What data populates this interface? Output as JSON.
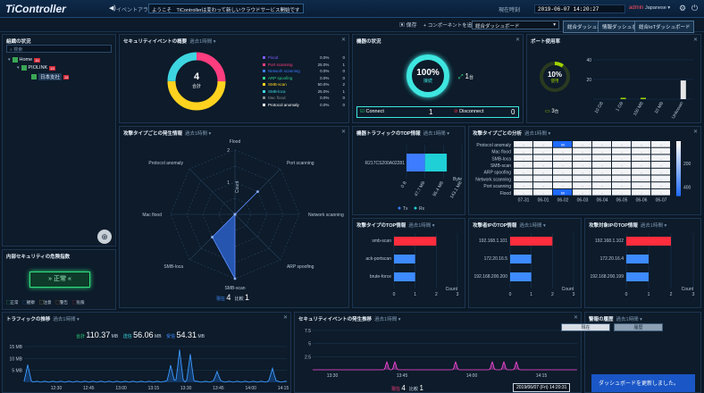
{
  "header": {
    "logo": "TiController",
    "notice_label": "イベントアラート",
    "notice_text": "ようこそ　TiControllerは変わって新しいクラウドサービス開始です",
    "clock_label": "現在時刻",
    "clock": "2019-06-07 14:20:27",
    "user": "admin",
    "lang": "Japanese ▾"
  },
  "toolbar": {
    "save": "保存",
    "add_component": "+ コンポーネントを追加",
    "dashboard_select": "総合ダッシュボード",
    "btn1": "総合ダッシュボード",
    "btn2": "情報ダッシュボード",
    "btn3": "総合IoTダッシュボード"
  },
  "tree": {
    "title": "組織の状況",
    "search_placeholder": "検索",
    "items": [
      {
        "label": "Home",
        "badge": "15"
      },
      {
        "label": "PIOLINK",
        "badge": "15"
      },
      {
        "label": "日本支社",
        "badge": "15"
      }
    ]
  },
  "security": {
    "title": "内部セキュリティの危険指数",
    "status": "正常",
    "legend": [
      "正常",
      "観察",
      "注意",
      "警告",
      "危険"
    ]
  },
  "events": {
    "title": "セキュリティイベントの概要",
    "sub": "過去1時間 ▾",
    "total": "4",
    "total_label": "合計",
    "rows": [
      {
        "name": "Flood",
        "pct": "0.0%",
        "count": "0",
        "color": "#7a5cff"
      },
      {
        "name": "Port scanning",
        "pct": "25.0%",
        "count": "1",
        "color": "#ff3d7f"
      },
      {
        "name": "Network scanning",
        "pct": "0.0%",
        "count": "0",
        "color": "#3d7bff"
      },
      {
        "name": "ARP spoofing",
        "pct": "0.0%",
        "count": "0",
        "color": "#2fd18c"
      },
      {
        "name": "SMB-scan",
        "pct": "50.0%",
        "count": "2",
        "color": "#ffd21f"
      },
      {
        "name": "SMB-loca",
        "pct": "25.0%",
        "count": "1",
        "color": "#3dd6e0"
      },
      {
        "name": "Mac flood",
        "pct": "0.0%",
        "count": "0",
        "color": "#8a8a8a"
      },
      {
        "name": "Protocol anomaly",
        "pct": "0.0%",
        "count": "0",
        "color": "#ffffff"
      }
    ]
  },
  "devices": {
    "title": "機器の状況",
    "pct": "100%",
    "pct_label": "接続",
    "count": "1",
    "unit": "台",
    "connect_label": "Connect",
    "connect_count": "1",
    "disconnect_label": "Disconnect",
    "disconnect_count": "0"
  },
  "ports": {
    "title": "ポート使用率",
    "pct": "10%",
    "pct_label": "使用",
    "count": "3",
    "unit": "台",
    "y_ticks": [
      "20",
      "40"
    ],
    "categories": [
      "10 GB",
      "1 GB",
      "100 MB",
      "10 MB",
      "Unknown"
    ],
    "values": [
      0,
      0.5,
      1,
      0,
      19
    ],
    "colors": [
      "#9fd200",
      "#9fd200",
      "#9fd200",
      "#9fd200",
      "#e6e6e6"
    ]
  },
  "radar": {
    "title": "攻撃タイプごとの発生情報",
    "sub": "過去1時間 ▾",
    "axes": [
      "Flood",
      "Port scanning",
      "Network scanning",
      "ARP spoofing",
      "SMB-scan",
      "SMB-loca",
      "Mac flood",
      "Protocol anomaly"
    ],
    "values": [
      0,
      1,
      0,
      0,
      2,
      1,
      0,
      0
    ],
    "max": 2,
    "ring_labels": [
      "1",
      "2"
    ],
    "axis_caption": "Count",
    "footer_a_label": "現在",
    "footer_a": "4",
    "footer_b_label": "比較",
    "footer_b": "1"
  },
  "traffic_top": {
    "title": "機器トラフィックのTOP情報",
    "sub": "過去1時間 ▾",
    "device": "R217CS200A02281",
    "tx": 47.7,
    "rx": 56.4,
    "tx_color": "#3d7bff",
    "rx_color": "#1fd0d6",
    "x_ticks": [
      "0 B",
      "47.7 MB",
      "95.4 MB",
      "143.1 MB"
    ],
    "unit": "Byte",
    "legend_tx": "Tx",
    "legend_rx": "Rx"
  },
  "heatmap": {
    "title": "攻撃タイプごとの分析",
    "sub": "過去1時間 ▾",
    "rows": [
      "Protocol anomaly",
      "Mac flood",
      "SMB-loca",
      "SMB-scan",
      "ARP spoofing",
      "Network scanning",
      "Port scanning",
      "Flood"
    ],
    "cols": [
      "07-31",
      "06-01",
      "06-02",
      "06-03",
      "06-04",
      "06-05",
      "06-06",
      "06-07"
    ],
    "highlights": [
      {
        "row": 0,
        "col": 2,
        "label": "90"
      },
      {
        "row": 7,
        "col": 2,
        "label": "60"
      }
    ],
    "scale": [
      "200",
      "400"
    ]
  },
  "attack_top": {
    "title": "攻撃タイプのTOP情報",
    "sub": "過去1時間 ▾",
    "categories": [
      "smb-scan",
      "ack-portscan",
      "brute-force"
    ],
    "values": [
      2,
      1,
      1
    ],
    "colors": [
      "#ff2d3d",
      "#3d8bff",
      "#3d8bff"
    ],
    "x_ticks": [
      "0",
      "1",
      "2",
      "3"
    ],
    "axis": "Count"
  },
  "attacker_top": {
    "title": "攻撃者IPのTOP情報",
    "sub": "過去1時間 ▾",
    "categories": [
      "192.168.1.101",
      "172.20.16.5",
      "192.168.200.200"
    ],
    "values": [
      2,
      1,
      1
    ],
    "colors": [
      "#ff2d3d",
      "#3d8bff",
      "#3d8bff"
    ],
    "x_ticks": [
      "0",
      "1",
      "2",
      "3"
    ],
    "axis": "Count"
  },
  "target_top": {
    "title": "攻撃対象IPのTOP情報",
    "sub": "過去1時間 ▾",
    "categories": [
      "192.168.1.102",
      "172.20.16.4",
      "192.168.200.199"
    ],
    "values": [
      2,
      1,
      1
    ],
    "colors": [
      "#ff2d3d",
      "#3d8bff",
      "#3d8bff"
    ],
    "x_ticks": [
      "0",
      "1",
      "2",
      "3"
    ],
    "axis": "Count"
  },
  "traffic_trend": {
    "title": "トラフィックの推移",
    "sub": "過去1時間 ▾",
    "total_label": "合計",
    "total": "110.37",
    "total_unit": "MB",
    "tx_label": "送信",
    "tx": "56.06",
    "tx_unit": "MB",
    "rx_label": "受信",
    "rx": "54.31",
    "rx_unit": "MB",
    "y_ticks": [
      "5 MB",
      "10 MB",
      "15 MB"
    ],
    "x_ticks": [
      "12:30",
      "12:45",
      "13:00",
      "13:15",
      "13:30",
      "13:45",
      "14:00",
      "14:15"
    ]
  },
  "event_trend": {
    "title": "セキュリティイベントの発生推移",
    "sub": "過去1時間 ▾",
    "y_ticks": [
      "2.5",
      "5",
      "7.5"
    ],
    "x_ticks": [
      "13:30",
      "13:45",
      "14:00",
      "14:15"
    ],
    "footer_a_label": "現在",
    "footer_a": "4",
    "footer_b_label": "比較",
    "footer_b": "1"
  },
  "rules": {
    "title": "警報の履歴",
    "sub": "過去1時間 ▾",
    "tab1": "現在",
    "tab2": "履歴"
  },
  "toast": "ダッシュボードを更新しました。",
  "tooltip": "2019/06/07 (Fri) 14:20:31"
}
